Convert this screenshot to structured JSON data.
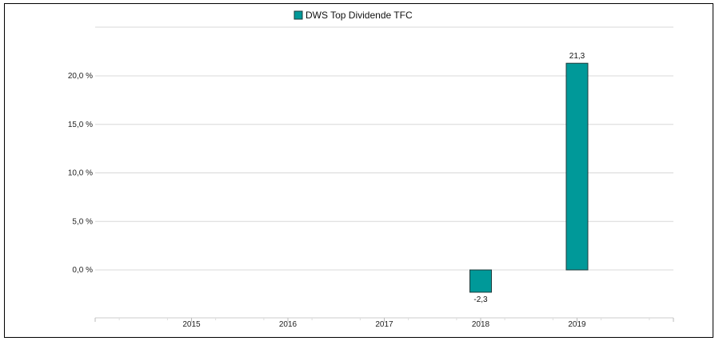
{
  "chart_data": {
    "type": "bar",
    "title": "",
    "xlabel": "",
    "ylabel": "",
    "categories": [
      "2015",
      "2016",
      "2017",
      "2018",
      "2019"
    ],
    "series": [
      {
        "name": "DWS Top Dividende  TFC",
        "values": [
          null,
          null,
          null,
          -2.3,
          21.3
        ],
        "color": "#009999"
      }
    ],
    "data_labels": [
      "",
      "",
      "",
      "-2,3",
      "21,3"
    ],
    "y_ticks": [
      0,
      5,
      10,
      15,
      20
    ],
    "y_tick_labels": [
      "0,0 %",
      "5,0 %",
      "10,0 %",
      "15,0 %",
      "20,0 %"
    ],
    "ylim": [
      -4.6,
      25
    ],
    "grid": true,
    "legend_position": "top-center"
  },
  "colors": {
    "bar_fill": "#009999",
    "bar_stroke": "#1f3b3b",
    "grid": "#d8d8d8",
    "frame": "#000000"
  }
}
